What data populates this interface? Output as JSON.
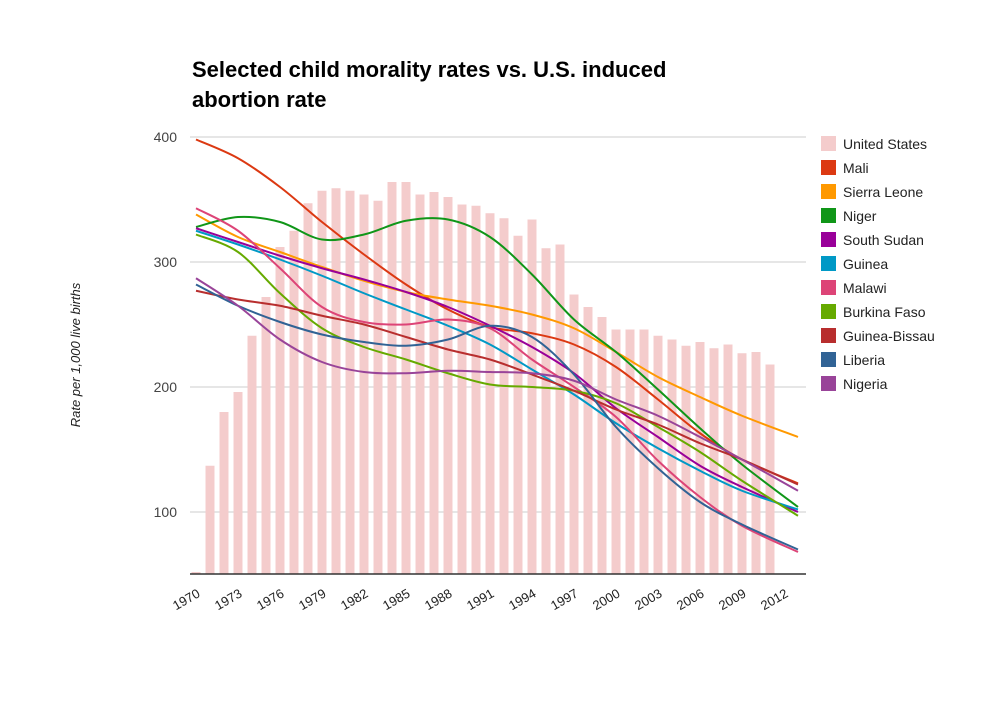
{
  "chart_data": {
    "type": "bar+line",
    "title_lines": [
      "Selected child morality rates vs. U.S. induced",
      "abortion rate"
    ],
    "xlabel": "",
    "ylabel": "Rate per 1,000 live births",
    "ylim": [
      50,
      400
    ],
    "yticks": [
      100,
      200,
      300,
      400
    ],
    "xlim": [
      1970,
      2013
    ],
    "xticks": [
      "1970",
      "1973",
      "1976",
      "1979",
      "1982",
      "1985",
      "1988",
      "1991",
      "1994",
      "1997",
      "2000",
      "2003",
      "2006",
      "2009",
      "2012"
    ],
    "grid": true,
    "legend_position": "right",
    "bar_series": {
      "name": "United States",
      "color": "#f4cccc",
      "years": [
        1970,
        1971,
        1972,
        1973,
        1974,
        1975,
        1976,
        1977,
        1978,
        1979,
        1980,
        1981,
        1982,
        1983,
        1984,
        1985,
        1986,
        1987,
        1988,
        1989,
        1990,
        1991,
        1992,
        1993,
        1994,
        1995,
        1996,
        1997,
        1998,
        1999,
        2000,
        2001,
        2002,
        2003,
        2004,
        2005,
        2006,
        2007,
        2008,
        2009,
        2010,
        2011
      ],
      "values": [
        52,
        137,
        180,
        196,
        241,
        272,
        312,
        325,
        347,
        357,
        359,
        357,
        354,
        349,
        364,
        364,
        354,
        356,
        352,
        346,
        345,
        339,
        335,
        321,
        334,
        311,
        314,
        274,
        264,
        256,
        246,
        246,
        246,
        241,
        238,
        233,
        236,
        231,
        234,
        227,
        228,
        218
      ]
    },
    "line_years": [
      1970,
      1973,
      1976,
      1979,
      1982,
      1985,
      1988,
      1991,
      1994,
      1997,
      2000,
      2003,
      2006,
      2009,
      2013
    ],
    "line_series": [
      {
        "name": "Mali",
        "color": "#dc3912",
        "values": [
          398,
          383,
          360,
          332,
          306,
          282,
          262,
          248,
          243,
          234,
          216,
          190,
          163,
          142,
          123
        ]
      },
      {
        "name": "Sierra Leone",
        "color": "#ff9900",
        "values": [
          338,
          320,
          308,
          296,
          285,
          276,
          270,
          265,
          258,
          247,
          228,
          208,
          192,
          177,
          160
        ]
      },
      {
        "name": "Niger",
        "color": "#109618",
        "values": [
          328,
          336,
          332,
          318,
          322,
          333,
          334,
          320,
          290,
          254,
          228,
          198,
          167,
          138,
          104
        ]
      },
      {
        "name": "South Sudan",
        "color": "#990099",
        "values": [
          327,
          316,
          305,
          295,
          286,
          276,
          264,
          249,
          232,
          211,
          183,
          160,
          137,
          120,
          100
        ]
      },
      {
        "name": "Guinea",
        "color": "#0099c6",
        "values": [
          325,
          314,
          302,
          289,
          275,
          262,
          249,
          234,
          214,
          194,
          171,
          151,
          133,
          117,
          102
        ]
      },
      {
        "name": "Malawi",
        "color": "#dd4477",
        "values": [
          343,
          325,
          295,
          264,
          252,
          250,
          254,
          247,
          222,
          200,
          176,
          141,
          112,
          89,
          68
        ]
      },
      {
        "name": "Burkina Faso",
        "color": "#66aa00",
        "values": [
          322,
          308,
          275,
          247,
          232,
          222,
          211,
          202,
          200,
          197,
          187,
          168,
          148,
          125,
          97
        ]
      },
      {
        "name": "Guinea-Bissau",
        "color": "#b82e2e",
        "values": [
          277,
          270,
          265,
          257,
          250,
          240,
          230,
          222,
          210,
          197,
          182,
          170,
          155,
          142,
          122
        ]
      },
      {
        "name": "Liberia",
        "color": "#316395",
        "values": [
          282,
          265,
          252,
          242,
          236,
          233,
          238,
          249,
          240,
          210,
          168,
          135,
          108,
          90,
          70
        ]
      },
      {
        "name": "Nigeria",
        "color": "#994499",
        "values": [
          287,
          265,
          238,
          220,
          212,
          211,
          213,
          212,
          211,
          205,
          190,
          177,
          160,
          142,
          117
        ]
      }
    ]
  }
}
